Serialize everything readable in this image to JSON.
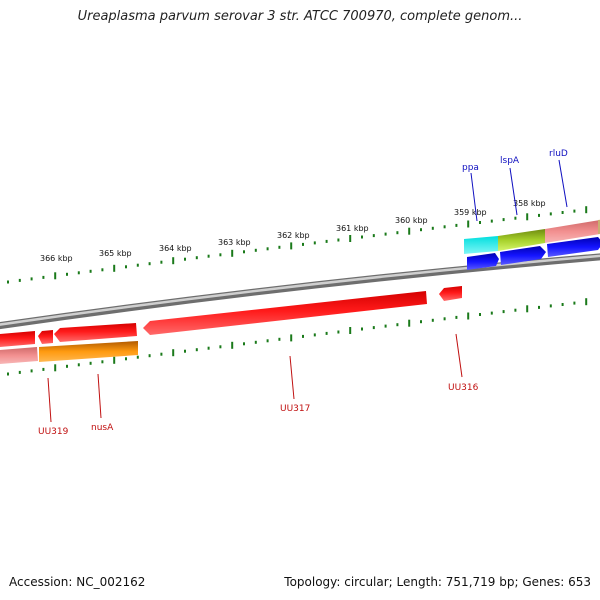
{
  "title": "Ureaplasma parvum serovar 3 str. ATCC 700970, complete genom...",
  "footer": {
    "accession": "Accession: NC_002162",
    "topology": "Topology: circular; Length: 751,719 bp; Genes: 653"
  },
  "scale": {
    "unit": "kbp",
    "ticks": [
      {
        "kbp": 366,
        "label": "366 kbp"
      },
      {
        "kbp": 365,
        "label": "365 kbp"
      },
      {
        "kbp": 364,
        "label": "364 kbp"
      },
      {
        "kbp": 363,
        "label": "363 kbp"
      },
      {
        "kbp": 362,
        "label": "362 kbp"
      },
      {
        "kbp": 361,
        "label": "361 kbp"
      },
      {
        "kbp": 360,
        "label": "360 kbp"
      },
      {
        "kbp": 359,
        "label": "359 kbp"
      },
      {
        "kbp": 358,
        "label": "358 kbp"
      }
    ]
  },
  "genes_forward": [
    {
      "name": "ppa"
    },
    {
      "name": "lspA"
    },
    {
      "name": "rluD"
    }
  ],
  "genes_reverse": [
    {
      "name": "UU319"
    },
    {
      "name": "nusA"
    },
    {
      "name": "UU317"
    },
    {
      "name": "UU316"
    }
  ],
  "colors": {
    "forward_cds": "#0000ee",
    "reverse_cds": "#ee0000",
    "backbone": "#888888",
    "ticks": "#1a7a1a",
    "forward_label": "#1010c0",
    "reverse_label": "#c01010"
  }
}
